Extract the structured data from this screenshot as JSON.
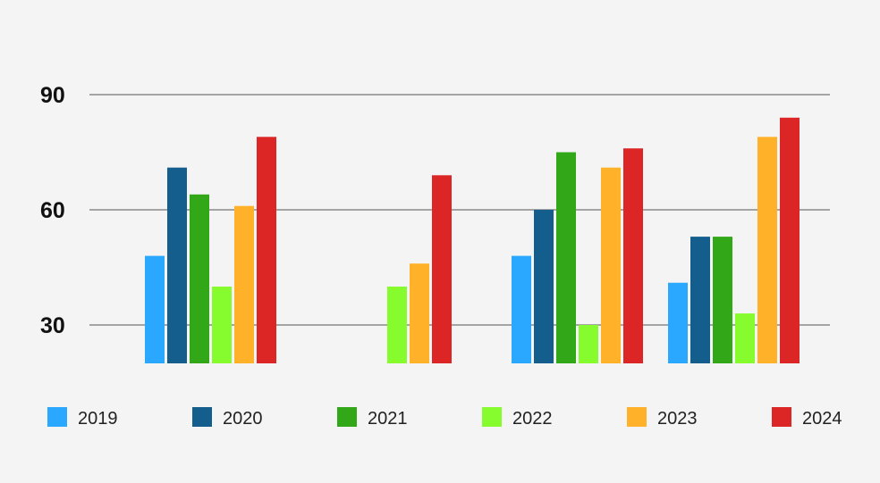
{
  "chart_data": {
    "type": "bar",
    "categories": [
      "",
      "",
      "",
      ""
    ],
    "ylim": [
      20,
      100
    ],
    "yticks": [
      30,
      60,
      90
    ],
    "tick_labels": [
      "30",
      "60",
      "90"
    ],
    "grid": true,
    "legend_position": "bottom",
    "series": [
      {
        "name": "2019",
        "color": "#2aa8ff",
        "values": [
          48,
          null,
          48,
          41
        ]
      },
      {
        "name": "2020",
        "color": "#135e8c",
        "values": [
          71,
          null,
          60,
          53
        ]
      },
      {
        "name": "2021",
        "color": "#32a818",
        "values": [
          64,
          null,
          75,
          53
        ]
      },
      {
        "name": "2022",
        "color": "#86fb2d",
        "values": [
          40,
          40,
          30,
          33
        ]
      },
      {
        "name": "2023",
        "color": "#ffb12a",
        "values": [
          61,
          46,
          71,
          79
        ]
      },
      {
        "name": "2024",
        "color": "#dc2626",
        "values": [
          79,
          69,
          76,
          84
        ]
      }
    ]
  }
}
